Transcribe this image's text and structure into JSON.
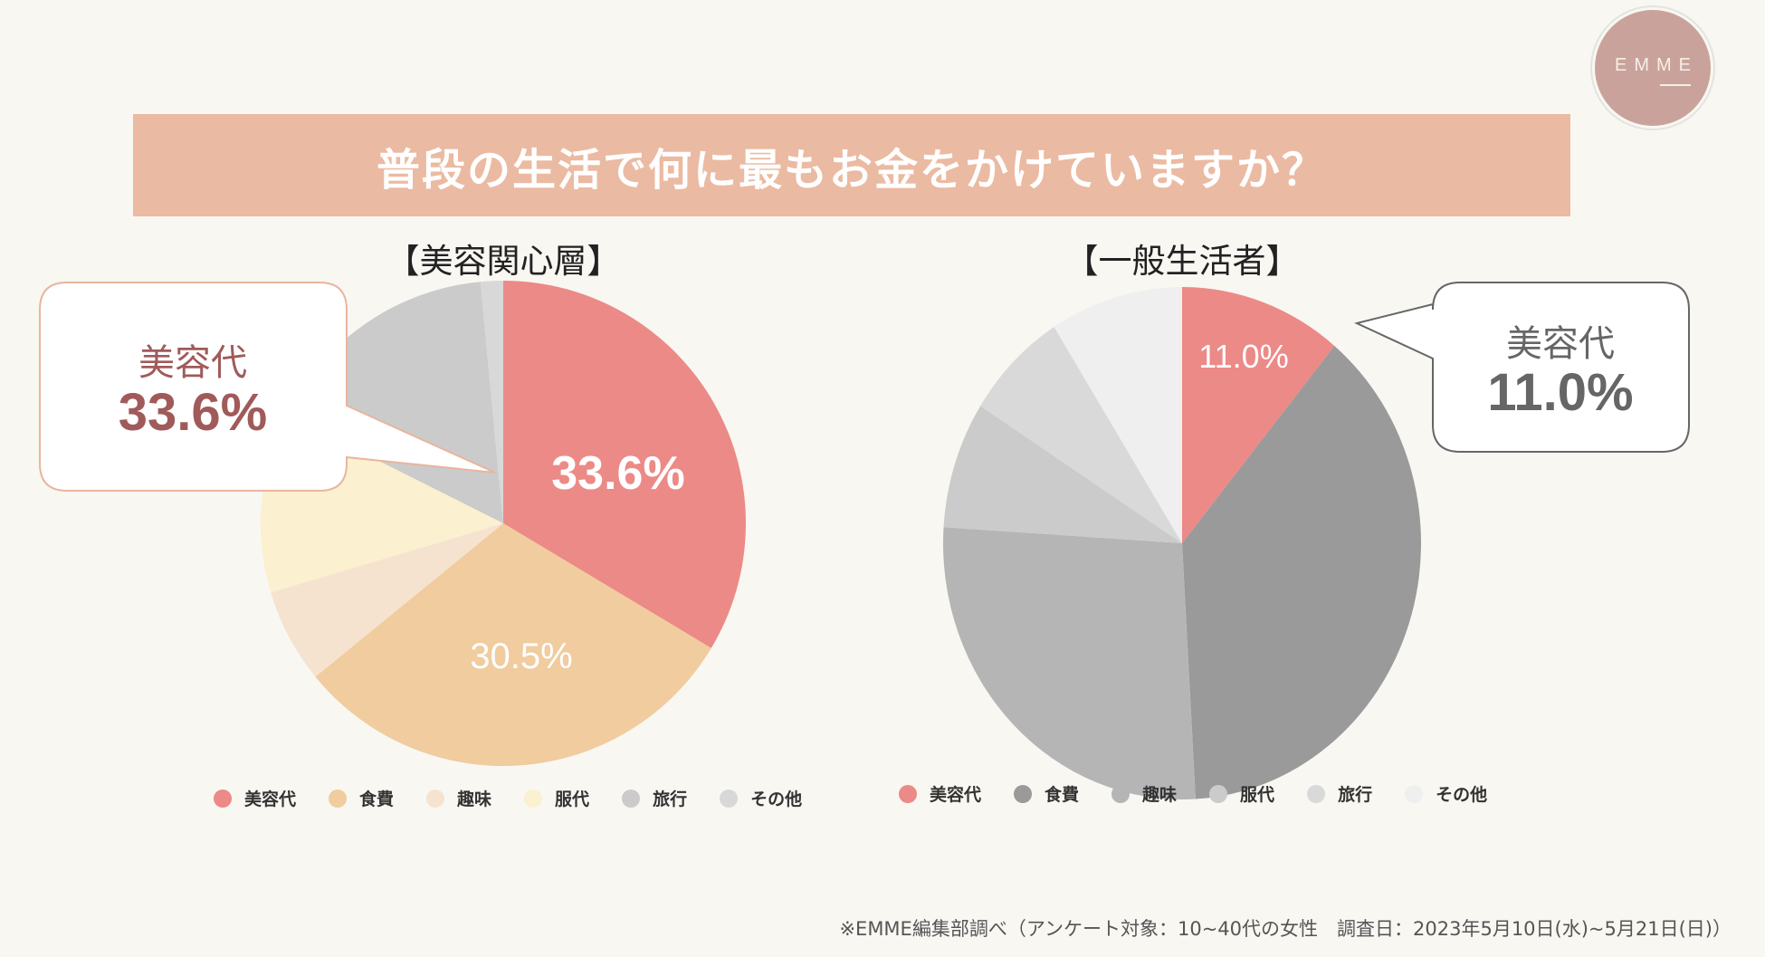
{
  "logo": {
    "text": "EMME"
  },
  "banner": {
    "title": "普段の生活で何に最もお金をかけていますか？"
  },
  "chart_data": [
    {
      "type": "pie",
      "title": "【美容関心層】",
      "categories": [
        "美容代",
        "食費",
        "趣味",
        "服代",
        "旅行",
        "その他"
      ],
      "values": [
        33.6,
        30.5,
        6.3,
        12.0,
        16.1,
        1.5
      ],
      "colors": [
        "#ec8a87",
        "#f0cc9f",
        "#f6e3cf",
        "#fbf0cf",
        "#cbcbcb",
        "#d8d8d8"
      ],
      "data_labels": [
        {
          "category": "美容代",
          "text": "33.6%"
        },
        {
          "category": "食費",
          "text": "30.5%"
        }
      ],
      "callout": {
        "label": "美容代",
        "value": "33.6%"
      },
      "legend": "bottom"
    },
    {
      "type": "pie",
      "title": "【一般生活者】",
      "categories": [
        "美容代",
        "食費",
        "趣味",
        "服代",
        "旅行",
        "その他"
      ],
      "values": [
        11.0,
        38.1,
        26.9,
        8.0,
        7.0,
        9.0
      ],
      "colors": [
        "#ec8a87",
        "#9a9a9a",
        "#b5b5b5",
        "#cbcbcb",
        "#d9d9d9",
        "#efefef"
      ],
      "data_labels": [
        {
          "category": "美容代",
          "text": "11.0%"
        }
      ],
      "callout": {
        "label": "美容代",
        "value": "11.0%"
      },
      "legend": "bottom"
    }
  ],
  "footnote": "※EMME編集部調べ（アンケート対象：10~40代の女性　調査日：2023年5月10日(水)~5月21日(日)）"
}
